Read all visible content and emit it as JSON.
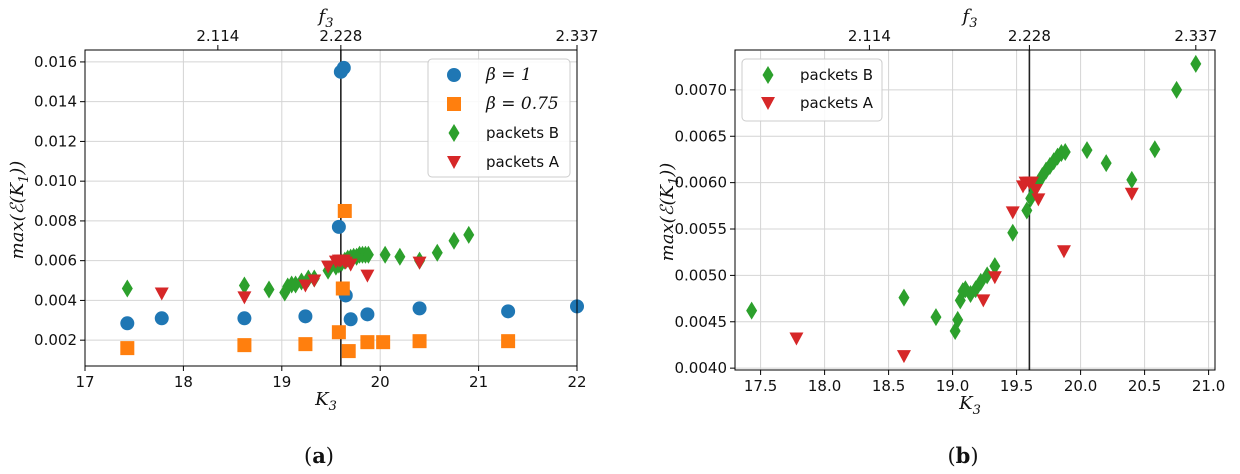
{
  "chart_data": [
    {
      "type": "scatter",
      "panel": "(a)",
      "caption_letter": "a",
      "xlabel": "K",
      "xlabel_sub": "3",
      "ylabel": "max(ℰ(K",
      "ylabel_sub": "1",
      "ylabel_tail": "))",
      "top_xlabel": "f",
      "top_xlabel_sub": "3",
      "xlim": [
        17,
        22
      ],
      "ylim": [
        0.0007,
        0.0166
      ],
      "x_ticks": [
        17,
        18,
        19,
        20,
        21,
        22
      ],
      "x_tick_labels": [
        "17",
        "18",
        "19",
        "20",
        "21",
        "22"
      ],
      "y_ticks": [
        0.002,
        0.004,
        0.006,
        0.008,
        0.01,
        0.012,
        0.014,
        0.016
      ],
      "y_tick_labels": [
        "0.002",
        "0.004",
        "0.006",
        "0.008",
        "0.010",
        "0.012",
        "0.014",
        "0.016"
      ],
      "top_x_ticks": [
        18.35,
        19.6,
        22.0
      ],
      "top_x_tick_labels": [
        "2.114",
        "2.228",
        "2.337"
      ],
      "vline": 19.6,
      "grid": true,
      "legend": "top-right",
      "series": [
        {
          "name": "β = 1",
          "legend_math": true,
          "marker": "circle",
          "color": "#1f77b4",
          "x": [
            17.43,
            17.78,
            18.62,
            19.24,
            19.58,
            19.6,
            19.63,
            19.65,
            19.7,
            19.87,
            20.4,
            21.3,
            22.0
          ],
          "y": [
            0.00285,
            0.0031,
            0.0031,
            0.0032,
            0.0077,
            0.0155,
            0.0157,
            0.00425,
            0.00305,
            0.0033,
            0.0036,
            0.00345,
            0.0037
          ]
        },
        {
          "name": "β = 0.75",
          "legend_math": true,
          "marker": "square",
          "color": "#ff7f0e",
          "x": [
            17.43,
            18.62,
            19.24,
            19.58,
            19.62,
            19.64,
            19.68,
            19.87,
            20.03,
            20.4,
            21.3
          ],
          "y": [
            0.0016,
            0.00175,
            0.0018,
            0.0024,
            0.0046,
            0.0085,
            0.00145,
            0.0019,
            0.0019,
            0.00195,
            0.00195
          ]
        },
        {
          "name": "packets B",
          "marker": "diamond",
          "color": "#2ca02c",
          "x": [
            17.43,
            18.62,
            18.87,
            19.03,
            19.06,
            19.1,
            19.14,
            19.2,
            19.27,
            19.33,
            19.47,
            19.55,
            19.58,
            19.61,
            19.64,
            19.67,
            19.7,
            19.73,
            19.76,
            19.79,
            19.82,
            19.85,
            19.88,
            20.05,
            20.2,
            20.4,
            20.58,
            20.75,
            20.9
          ],
          "y": [
            0.0046,
            0.00475,
            0.00455,
            0.0044,
            0.0047,
            0.0048,
            0.0048,
            0.00495,
            0.0051,
            0.0051,
            0.0055,
            0.0057,
            0.0058,
            0.0059,
            0.006,
            0.0061,
            0.00615,
            0.0062,
            0.0062,
            0.0063,
            0.0063,
            0.0063,
            0.0063,
            0.0063,
            0.0062,
            0.006,
            0.0064,
            0.007,
            0.0073
          ]
        },
        {
          "name": "packets A",
          "marker": "triangle-down",
          "color": "#d62728",
          "x": [
            17.78,
            18.62,
            19.24,
            19.33,
            19.47,
            19.55,
            19.58,
            19.6,
            19.63,
            19.65,
            19.7,
            19.87,
            20.4
          ],
          "y": [
            0.00435,
            0.00415,
            0.00475,
            0.005,
            0.0057,
            0.00595,
            0.006,
            0.006,
            0.006,
            0.0059,
            0.0058,
            0.00525,
            0.0059
          ]
        }
      ]
    },
    {
      "type": "scatter",
      "panel": "(b)",
      "caption_letter": "b",
      "xlabel": "K",
      "xlabel_sub": "3",
      "ylabel": "max(ℰ(K",
      "ylabel_sub": "1",
      "ylabel_tail": "))",
      "top_xlabel": "f",
      "top_xlabel_sub": "3",
      "xlim": [
        17.3,
        21.05
      ],
      "ylim": [
        0.00398,
        0.00743
      ],
      "x_ticks": [
        17.5,
        18.0,
        18.5,
        19.0,
        19.5,
        20.0,
        20.5,
        21.0
      ],
      "x_tick_labels": [
        "17.5",
        "18.0",
        "18.5",
        "19.0",
        "19.5",
        "20.0",
        "20.5",
        "21.0"
      ],
      "y_ticks": [
        0.004,
        0.0045,
        0.005,
        0.0055,
        0.006,
        0.0065,
        0.007
      ],
      "y_tick_labels": [
        "0.0040",
        "0.0045",
        "0.0050",
        "0.0055",
        "0.0060",
        "0.0065",
        "0.0070"
      ],
      "top_x_ticks": [
        18.35,
        19.6,
        20.9
      ],
      "top_x_tick_labels": [
        "2.114",
        "2.228",
        "2.337"
      ],
      "vline": 19.6,
      "grid": true,
      "legend": "top-left",
      "series": [
        {
          "name": "packets B",
          "marker": "diamond",
          "color": "#2ca02c",
          "x": [
            17.43,
            18.62,
            18.87,
            19.02,
            19.04,
            19.06,
            19.08,
            19.1,
            19.14,
            19.18,
            19.22,
            19.27,
            19.33,
            19.47,
            19.58,
            19.61,
            19.64,
            19.67,
            19.7,
            19.73,
            19.76,
            19.79,
            19.82,
            19.85,
            19.88,
            20.05,
            20.2,
            20.4,
            20.58,
            20.75,
            20.9
          ],
          "y": [
            0.00462,
            0.00476,
            0.00455,
            0.0044,
            0.00452,
            0.00473,
            0.00483,
            0.00485,
            0.0048,
            0.00485,
            0.00493,
            0.005,
            0.0051,
            0.00546,
            0.0057,
            0.00583,
            0.00593,
            0.006,
            0.00607,
            0.00613,
            0.00618,
            0.00623,
            0.00628,
            0.00632,
            0.00633,
            0.00635,
            0.00621,
            0.00603,
            0.00636,
            0.007,
            0.00728
          ]
        },
        {
          "name": "packets A",
          "marker": "triangle-down",
          "color": "#d62728",
          "x": [
            17.78,
            18.62,
            19.24,
            19.33,
            19.47,
            19.55,
            19.57,
            19.6,
            19.62,
            19.65,
            19.67,
            19.87,
            20.4
          ],
          "y": [
            0.00432,
            0.00413,
            0.00473,
            0.00498,
            0.00568,
            0.00596,
            0.006,
            0.006,
            0.006,
            0.00592,
            0.00582,
            0.00526,
            0.00588
          ]
        }
      ]
    }
  ]
}
